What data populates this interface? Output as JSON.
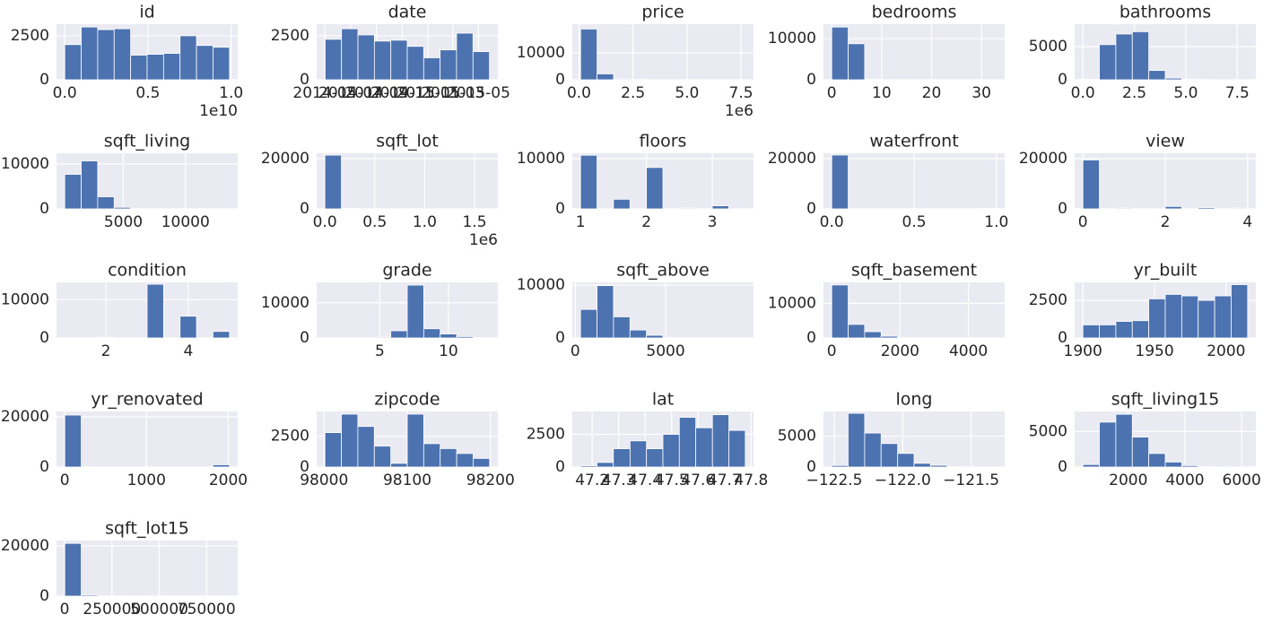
{
  "chart_data": [
    {
      "type": "histogram",
      "title": "id",
      "color": "#4c72b0",
      "grid": true,
      "bins": [
        0.0001,
        0.099,
        0.198,
        0.297,
        0.396,
        0.495,
        0.594,
        0.693,
        0.792,
        0.891,
        0.99
      ],
      "counts": [
        2000,
        3000,
        2850,
        2900,
        1400,
        1450,
        1500,
        2500,
        1950,
        1850
      ],
      "xlim": [
        -0.0494,
        1.0395
      ],
      "ylim": [
        0,
        3160
      ],
      "xticks": [
        {
          "value": 0,
          "label": "0.0"
        },
        0.5,
        {
          "value": 1,
          "label": "1.0"
        }
      ],
      "yticks": [
        0,
        2500
      ],
      "x_offset_label": "1e10"
    },
    {
      "type": "histogram",
      "title": "date",
      "color": "#4c72b0",
      "grid": true,
      "bins": [
        "2014-05-02",
        "2014-06-10",
        "2014-07-19",
        "2014-08-27",
        "2014-10-05",
        "2014-11-13",
        "2014-12-22",
        "2015-01-30",
        "2015-03-10",
        "2015-04-18",
        "2015-05-27"
      ],
      "counts": [
        2300,
        2900,
        2550,
        2200,
        2250,
        1900,
        1250,
        1700,
        2650,
        1600
      ],
      "xlim": [
        "2014-04-12",
        "2015-06-16"
      ],
      "ylim": [
        0,
        3160
      ],
      "xticks": [
        "2014-05",
        "2014-07",
        "2014-09",
        "2014-11",
        "2015-01",
        "2015-03",
        "2015-05"
      ],
      "yticks": [
        0,
        2500
      ]
    },
    {
      "type": "histogram",
      "title": "price",
      "color": "#4c72b0",
      "grid": true,
      "bins": [
        0.075,
        0.8375,
        1.6,
        2.3625,
        3.125,
        3.8875,
        4.65,
        5.4125,
        6.175,
        6.9375,
        7.7
      ],
      "counts": [
        18900,
        2200,
        300,
        80,
        20,
        10,
        5,
        3,
        1,
        1
      ],
      "xlim": [
        -0.31,
        8.08
      ],
      "ylim": [
        0,
        20700
      ],
      "xticks": [
        {
          "value": 0,
          "label": "0.0"
        },
        2.5,
        {
          "value": 5,
          "label": "5.0"
        },
        7.5
      ],
      "yticks": [
        0,
        10000
      ],
      "x_offset_label": "1e6"
    },
    {
      "type": "histogram",
      "title": "bedrooms",
      "color": "#4c72b0",
      "grid": true,
      "bins": [
        0,
        3.3,
        6.6,
        9.9,
        13.2,
        16.5,
        19.8,
        23.1,
        26.4,
        29.7,
        33
      ],
      "counts": [
        12800,
        8755,
        57,
        4,
        0,
        0,
        0,
        0,
        0,
        1
      ],
      "xlim": [
        -1.65,
        34.65
      ],
      "ylim": [
        0,
        13500
      ],
      "xticks": [
        0,
        10,
        20,
        30
      ],
      "yticks": [
        0,
        10000
      ]
    },
    {
      "type": "histogram",
      "title": "bathrooms",
      "color": "#4c72b0",
      "grid": true,
      "bins": [
        0,
        0.8,
        1.6,
        2.4,
        3.2,
        4,
        4.8,
        5.6,
        6.4,
        7.2,
        8
      ],
      "counts": [
        80,
        5300,
        6900,
        7250,
        1400,
        250,
        60,
        20,
        4,
        4
      ],
      "xlim": [
        -0.4,
        8.4
      ],
      "ylim": [
        0,
        8380
      ],
      "xticks": [
        {
          "value": 0,
          "label": "0.0"
        },
        2.5,
        {
          "value": 5,
          "label": "5.0"
        },
        7.5
      ],
      "yticks": [
        0,
        5000
      ]
    },
    {
      "type": "histogram",
      "title": "sqft_living",
      "color": "#4c72b0",
      "grid": true,
      "bins": [
        290,
        1615,
        2940,
        4265,
        5590,
        6915,
        8240,
        9565,
        10890,
        12215,
        13540
      ],
      "counts": [
        7700,
        10700,
        2700,
        350,
        70,
        15,
        5,
        3,
        1,
        1
      ],
      "xlim": [
        -372,
        14202
      ],
      "ylim": [
        0,
        12400
      ],
      "xticks": [
        5000,
        10000
      ],
      "yticks": [
        0,
        10000
      ]
    },
    {
      "type": "histogram",
      "title": "sqft_lot",
      "color": "#4c72b0",
      "grid": true,
      "bins": [
        0.00052,
        0.1656,
        0.3307,
        0.4958,
        0.6609,
        0.826,
        0.991,
        1.1561,
        1.3212,
        1.4863,
        1.6514
      ],
      "counts": [
        21400,
        150,
        40,
        15,
        3,
        2,
        0,
        1,
        1,
        1
      ],
      "xlim": [
        -0.082,
        1.7335
      ],
      "ylim": [
        0,
        22140
      ],
      "xticks": [
        {
          "value": 0,
          "label": "0.0"
        },
        0.5,
        {
          "value": 1,
          "label": "1.0"
        },
        1.5
      ],
      "yticks": [
        0,
        20000
      ],
      "x_offset_label": "1e6"
    },
    {
      "type": "histogram",
      "title": "floors",
      "color": "#4c72b0",
      "grid": true,
      "bins": [
        1,
        1.25,
        1.5,
        1.75,
        2,
        2.25,
        2.5,
        2.75,
        3,
        3.25,
        3.5
      ],
      "counts": [
        10680,
        0,
        1910,
        0,
        8241,
        0,
        161,
        0,
        613,
        8
      ],
      "xlim": [
        0.875,
        3.625
      ],
      "ylim": [
        0,
        11070
      ],
      "xticks": [
        1,
        2,
        3
      ],
      "yticks": [
        0,
        10000
      ]
    },
    {
      "type": "histogram",
      "title": "waterfront",
      "color": "#4c72b0",
      "grid": true,
      "bins": [
        0,
        0.1,
        0.2,
        0.3,
        0.4,
        0.5,
        0.6,
        0.7,
        0.8,
        0.9,
        1
      ],
      "counts": [
        21450,
        0,
        0,
        0,
        0,
        0,
        0,
        0,
        0,
        163
      ],
      "xlim": [
        -0.05,
        1.05
      ],
      "ylim": [
        0,
        22140
      ],
      "xticks": [
        {
          "value": 0,
          "label": "0.0"
        },
        0.5,
        {
          "value": 1,
          "label": "1.0"
        }
      ],
      "yticks": [
        0,
        20000
      ]
    },
    {
      "type": "histogram",
      "title": "view",
      "color": "#4c72b0",
      "grid": true,
      "bins": [
        0,
        0.4,
        0.8,
        1.2,
        1.6,
        2,
        2.4,
        2.8,
        3.2,
        3.6,
        4
      ],
      "counts": [
        19489,
        0,
        332,
        0,
        0,
        963,
        0,
        510,
        0,
        319
      ],
      "xlim": [
        -0.2,
        4.2
      ],
      "ylim": [
        0,
        22140
      ],
      "xticks": [
        0,
        2,
        4
      ],
      "yticks": [
        0,
        20000
      ]
    },
    {
      "type": "histogram",
      "title": "condition",
      "color": "#4c72b0",
      "grid": true,
      "bins": [
        1,
        1.4,
        1.8,
        2.2,
        2.6,
        3,
        3.4,
        3.8,
        4.2,
        4.6,
        5
      ],
      "counts": [
        30,
        0,
        172,
        0,
        0,
        14031,
        0,
        5679,
        0,
        1701
      ],
      "xlim": [
        0.8,
        5.2
      ],
      "ylim": [
        0,
        14520
      ],
      "xticks": [
        2,
        4
      ],
      "yticks": [
        0,
        10000
      ]
    },
    {
      "type": "histogram",
      "title": "grade",
      "color": "#4c72b0",
      "grid": true,
      "bins": [
        1,
        2.2,
        3.4,
        4.6,
        5.8,
        7,
        8.2,
        9.4,
        10.6,
        11.8,
        13
      ],
      "counts": [
        1,
        3,
        29,
        242,
        2038,
        15049,
        2615,
        1134,
        399,
        103
      ],
      "xlim": [
        0.4,
        13.6
      ],
      "ylim": [
        0,
        15830
      ],
      "xticks": [
        5,
        10
      ],
      "yticks": [
        0,
        10000
      ]
    },
    {
      "type": "histogram",
      "title": "sqft_above",
      "color": "#4c72b0",
      "grid": true,
      "bins": [
        290,
        1202,
        2114,
        3026,
        3938,
        4850,
        5762,
        6674,
        7586,
        8498,
        9410
      ],
      "counts": [
        5400,
        9900,
        4000,
        1500,
        500,
        80,
        20,
        5,
        3,
        1
      ],
      "xlim": [
        -166,
        9866
      ],
      "ylim": [
        0,
        10520
      ],
      "xticks": [
        0,
        5000
      ],
      "yticks": [
        0,
        10000
      ]
    },
    {
      "type": "histogram",
      "title": "sqft_basement",
      "color": "#4c72b0",
      "grid": true,
      "bins": [
        0,
        482,
        964,
        1446,
        1928,
        2410,
        2892,
        3374,
        3856,
        4338,
        4820
      ],
      "counts": [
        15300,
        3900,
        1800,
        500,
        60,
        20,
        3,
        3,
        0,
        1
      ],
      "xlim": [
        -241,
        5061
      ],
      "ylim": [
        0,
        16050
      ],
      "xticks": [
        0,
        2000,
        4000
      ],
      "yticks": [
        0,
        10000
      ]
    },
    {
      "type": "histogram",
      "title": "yr_built",
      "color": "#4c72b0",
      "grid": true,
      "bins": [
        1900,
        1911.5,
        1923,
        1934.5,
        1946,
        1957.5,
        1969,
        1980.5,
        1992,
        2003.5,
        2015
      ],
      "counts": [
        870,
        870,
        1100,
        1150,
        2600,
        2900,
        2800,
        2500,
        2800,
        3550
      ],
      "xlim": [
        1894.25,
        2020.75
      ],
      "ylim": [
        0,
        3700
      ],
      "xticks": [
        1900,
        1950,
        2000
      ],
      "yticks": [
        0,
        2500
      ]
    },
    {
      "type": "histogram",
      "title": "yr_renovated",
      "color": "#4c72b0",
      "grid": true,
      "bins": [
        0,
        201.5,
        403,
        604.5,
        806,
        1007.5,
        1209,
        1410.5,
        1612,
        1813.5,
        2015
      ],
      "counts": [
        20699,
        0,
        0,
        0,
        0,
        0,
        0,
        0,
        0,
        914
      ],
      "xlim": [
        -100.75,
        2115.75
      ],
      "ylim": [
        0,
        22140
      ],
      "xticks": [
        0,
        1000,
        2000
      ],
      "yticks": [
        0,
        20000
      ]
    },
    {
      "type": "histogram",
      "title": "zipcode",
      "color": "#4c72b0",
      "grid": true,
      "bins": [
        98001,
        98020.8,
        98040.6,
        98060.4,
        98080.2,
        98100,
        98119.8,
        98139.6,
        98159.4,
        98179.2,
        98199
      ],
      "counts": [
        2800,
        4300,
        3300,
        1700,
        300,
        4300,
        1900,
        1500,
        1100,
        700
      ],
      "xlim": [
        97991.1,
        98208.9
      ],
      "ylim": [
        0,
        4520
      ],
      "xticks": [
        98000,
        98100,
        98200
      ],
      "yticks": [
        0,
        2500
      ]
    },
    {
      "type": "histogram",
      "title": "lat",
      "color": "#4c72b0",
      "grid": true,
      "bins": [
        47.156,
        47.218,
        47.28,
        47.343,
        47.405,
        47.467,
        47.529,
        47.591,
        47.654,
        47.716,
        47.778
      ],
      "counts": [
        100,
        350,
        1400,
        2000,
        1400,
        2500,
        3800,
        3000,
        4000,
        2800
      ],
      "xlim": [
        47.125,
        47.809
      ],
      "ylim": [
        0,
        4250
      ],
      "xticks": [
        47.2,
        47.3,
        47.4,
        47.5,
        47.6,
        47.7,
        47.8
      ],
      "yticks": [
        0,
        2500
      ]
    },
    {
      "type": "histogram",
      "title": "long",
      "color": "#4c72b0",
      "grid": true,
      "bins": [
        -122.519,
        -122.399,
        -122.278,
        -122.158,
        -122.037,
        -121.917,
        -121.797,
        -121.676,
        -121.556,
        -121.435,
        -121.315
      ],
      "counts": [
        250,
        8700,
        5500,
        3800,
        2200,
        600,
        280,
        50,
        10,
        10
      ],
      "xlim": [
        -122.579,
        -121.255
      ],
      "ylim": [
        0,
        9000
      ],
      "xticks": [
        {
          "value": -122.5,
          "label": "−122.5"
        },
        {
          "value": -122,
          "label": "−122.0"
        },
        {
          "value": -121.5,
          "label": "−121.5"
        }
      ],
      "yticks": [
        0,
        5000
      ]
    },
    {
      "type": "histogram",
      "title": "sqft_living15",
      "color": "#4c72b0",
      "grid": true,
      "bins": [
        399,
        980,
        1561,
        2142,
        2723,
        3305,
        3886,
        4467,
        5048,
        5629,
        6210
      ],
      "counts": [
        350,
        6300,
        7400,
        4200,
        1900,
        700,
        200,
        50,
        10,
        5
      ],
      "xlim": [
        108.5,
        6500.5
      ],
      "ylim": [
        0,
        7800
      ],
      "xticks": [
        2000,
        4000,
        6000
      ],
      "yticks": [
        0,
        5000
      ]
    },
    {
      "type": "histogram",
      "title": "sqft_lot15",
      "color": "#4c72b0",
      "grid": true,
      "bins": [
        651,
        87706,
        174761,
        261816,
        348871,
        435926,
        522980,
        610035,
        697090,
        784145,
        871200
      ],
      "counts": [
        21000,
        450,
        80,
        40,
        15,
        5,
        2,
        1,
        0,
        1
      ],
      "xlim": [
        -42876,
        914727
      ],
      "ylim": [
        0,
        22140
      ],
      "xticks": [
        0,
        250000,
        500000,
        750000
      ],
      "yticks": [
        0,
        20000
      ]
    }
  ]
}
